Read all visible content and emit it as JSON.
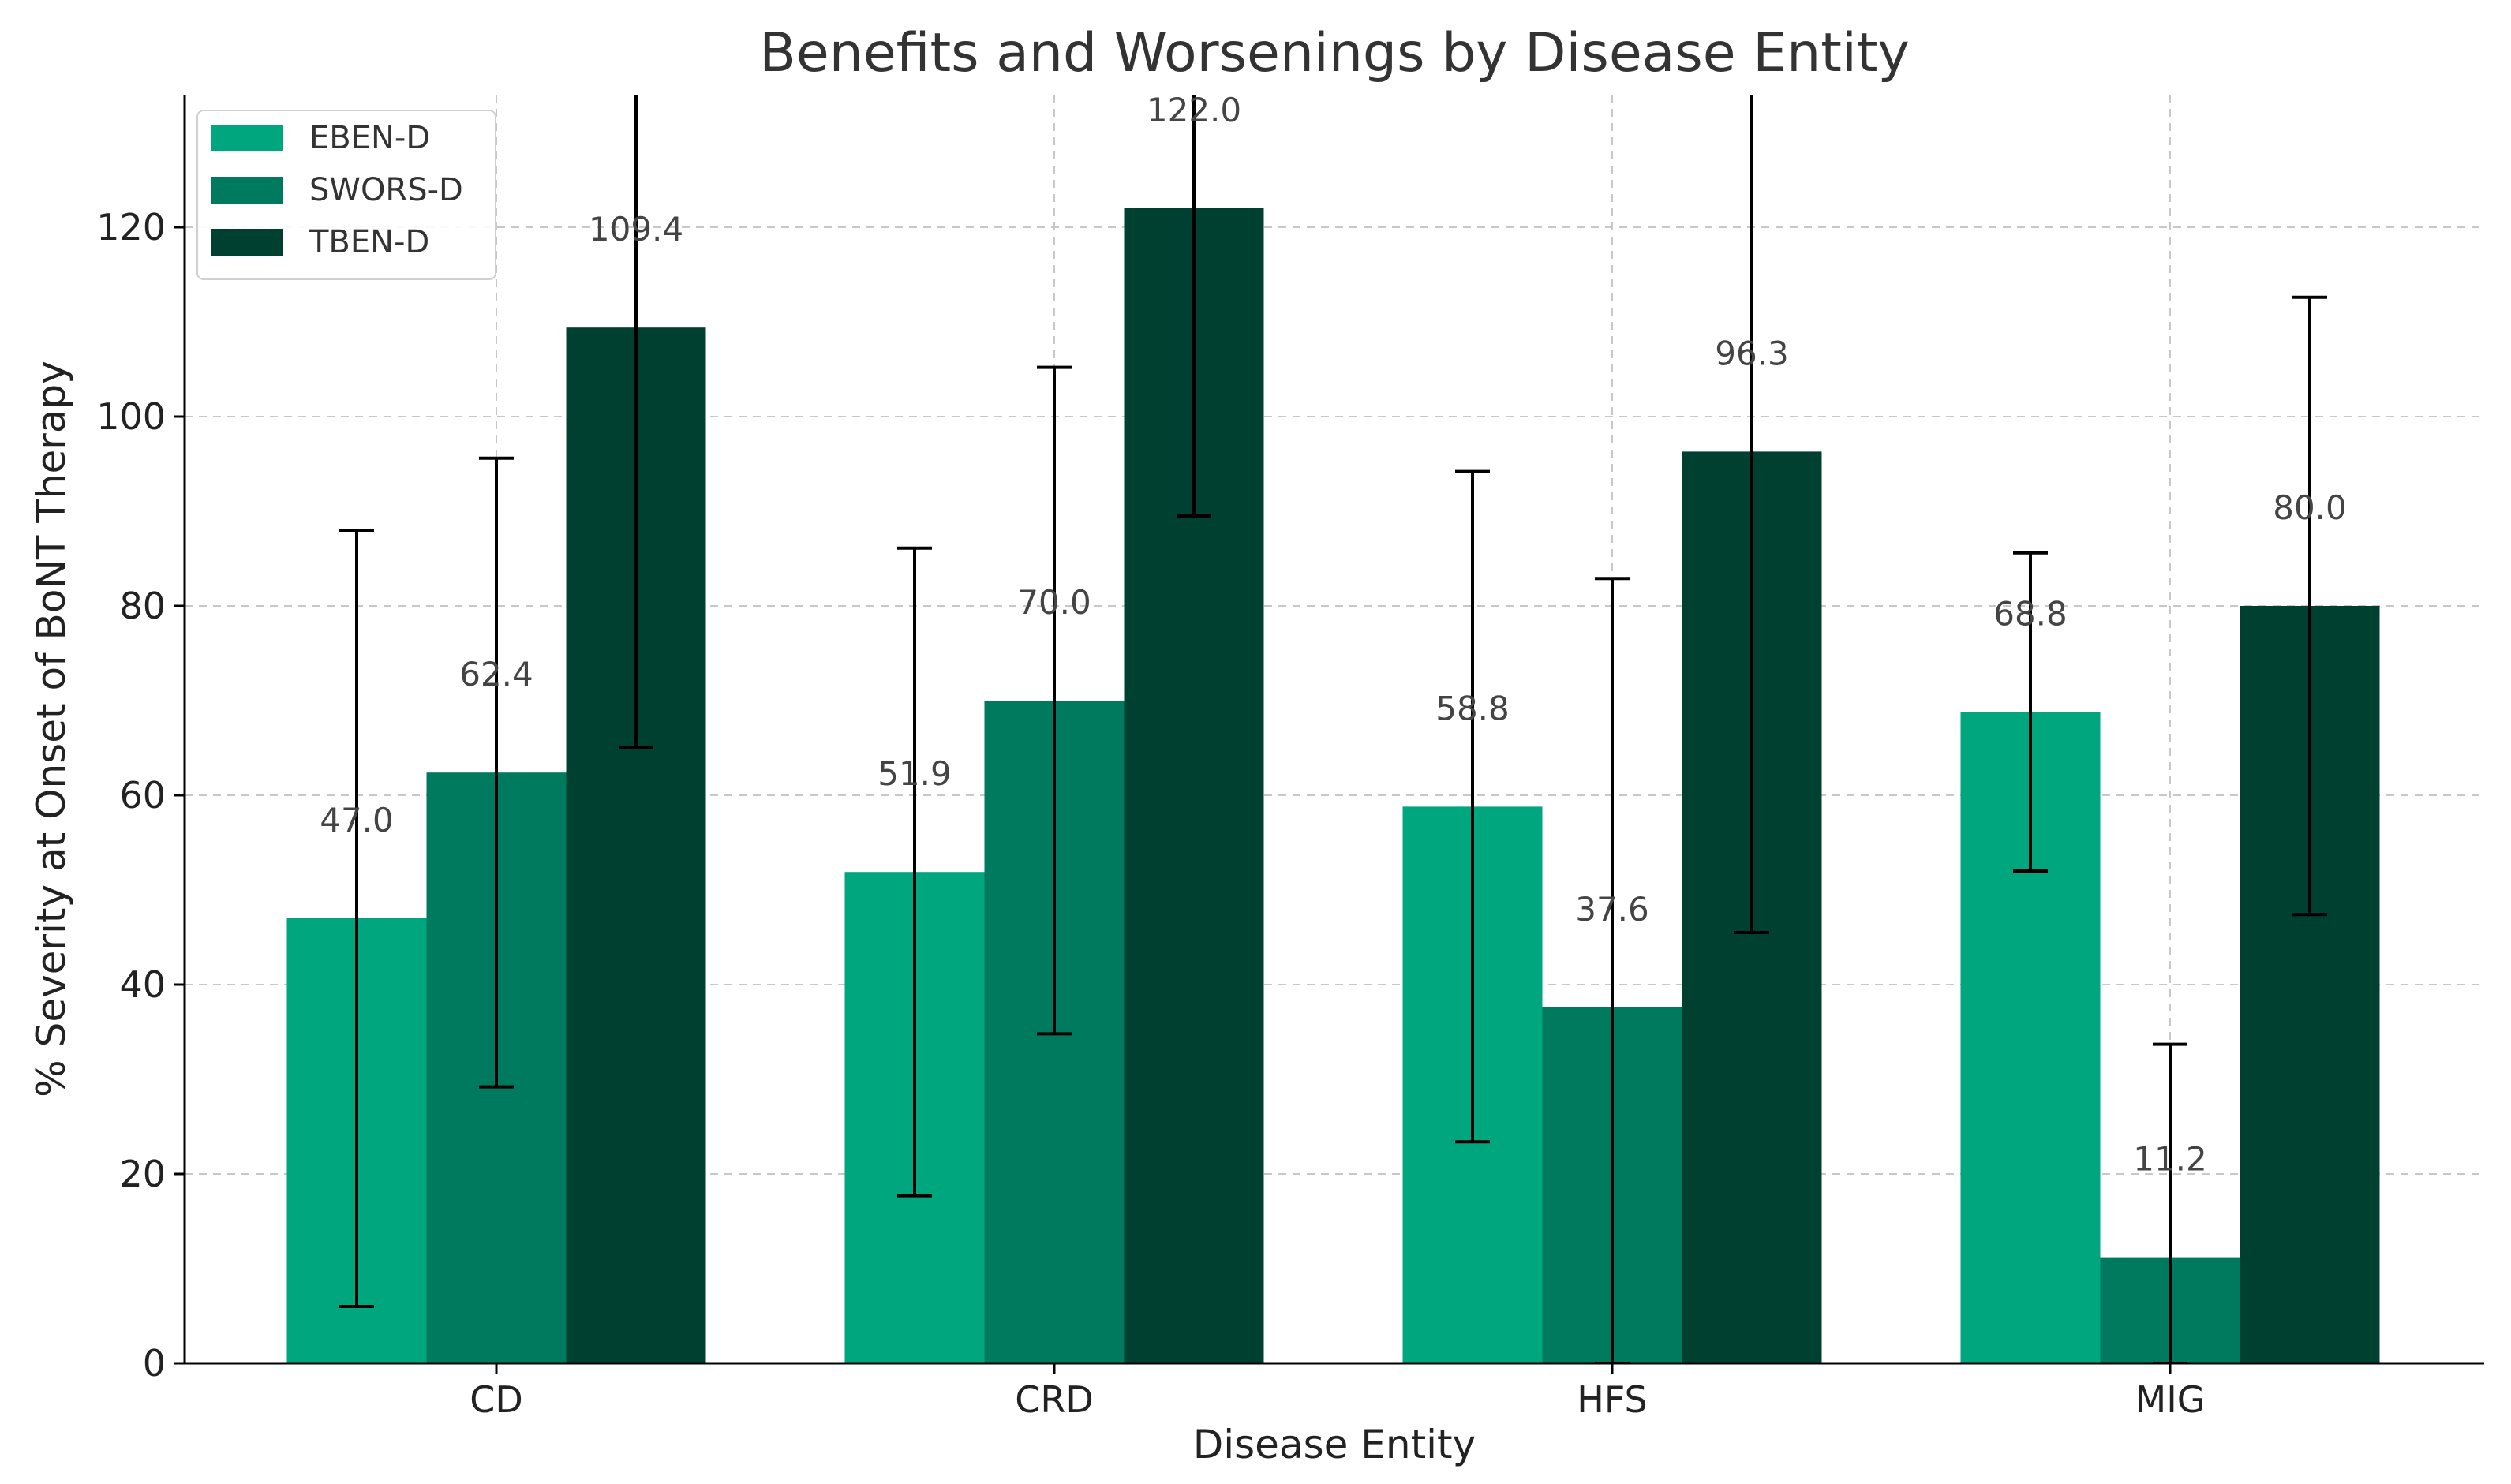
{
  "chart_data": {
    "type": "bar",
    "title": "Benefits and Worsenings by Disease Entity",
    "xlabel": "Disease Entity",
    "ylabel": "% Severity at Onset of BoNT Therapy",
    "categories": [
      "CD",
      "CRD",
      "HFS",
      "MIG"
    ],
    "ylim": [
      0,
      134
    ],
    "yticks": [
      0,
      20,
      40,
      60,
      80,
      100,
      120
    ],
    "grid": true,
    "legend_position": "top-left",
    "series": [
      {
        "name": "EBEN-D",
        "color": "#00a67e",
        "values": [
          47.0,
          51.9,
          58.8,
          68.8
        ],
        "value_labels": [
          "47.0",
          "51.9",
          "58.8",
          "68.8"
        ],
        "error": [
          41.0,
          34.2,
          35.4,
          16.8
        ]
      },
      {
        "name": "SWORS-D",
        "color": "#007a5e",
        "values": [
          62.4,
          70.0,
          37.6,
          11.2
        ],
        "value_labels": [
          "62.4",
          "70.0",
          "37.6",
          "11.2"
        ],
        "error": [
          33.2,
          35.2,
          45.3,
          22.5
        ]
      },
      {
        "name": "TBEN-D",
        "color": "#004030",
        "values": [
          109.4,
          122.0,
          96.3,
          80.0
        ],
        "value_labels": [
          "109.4",
          "122.0",
          "96.3",
          "80.0"
        ],
        "error": [
          44.4,
          32.5,
          50.8,
          32.6
        ]
      }
    ]
  }
}
